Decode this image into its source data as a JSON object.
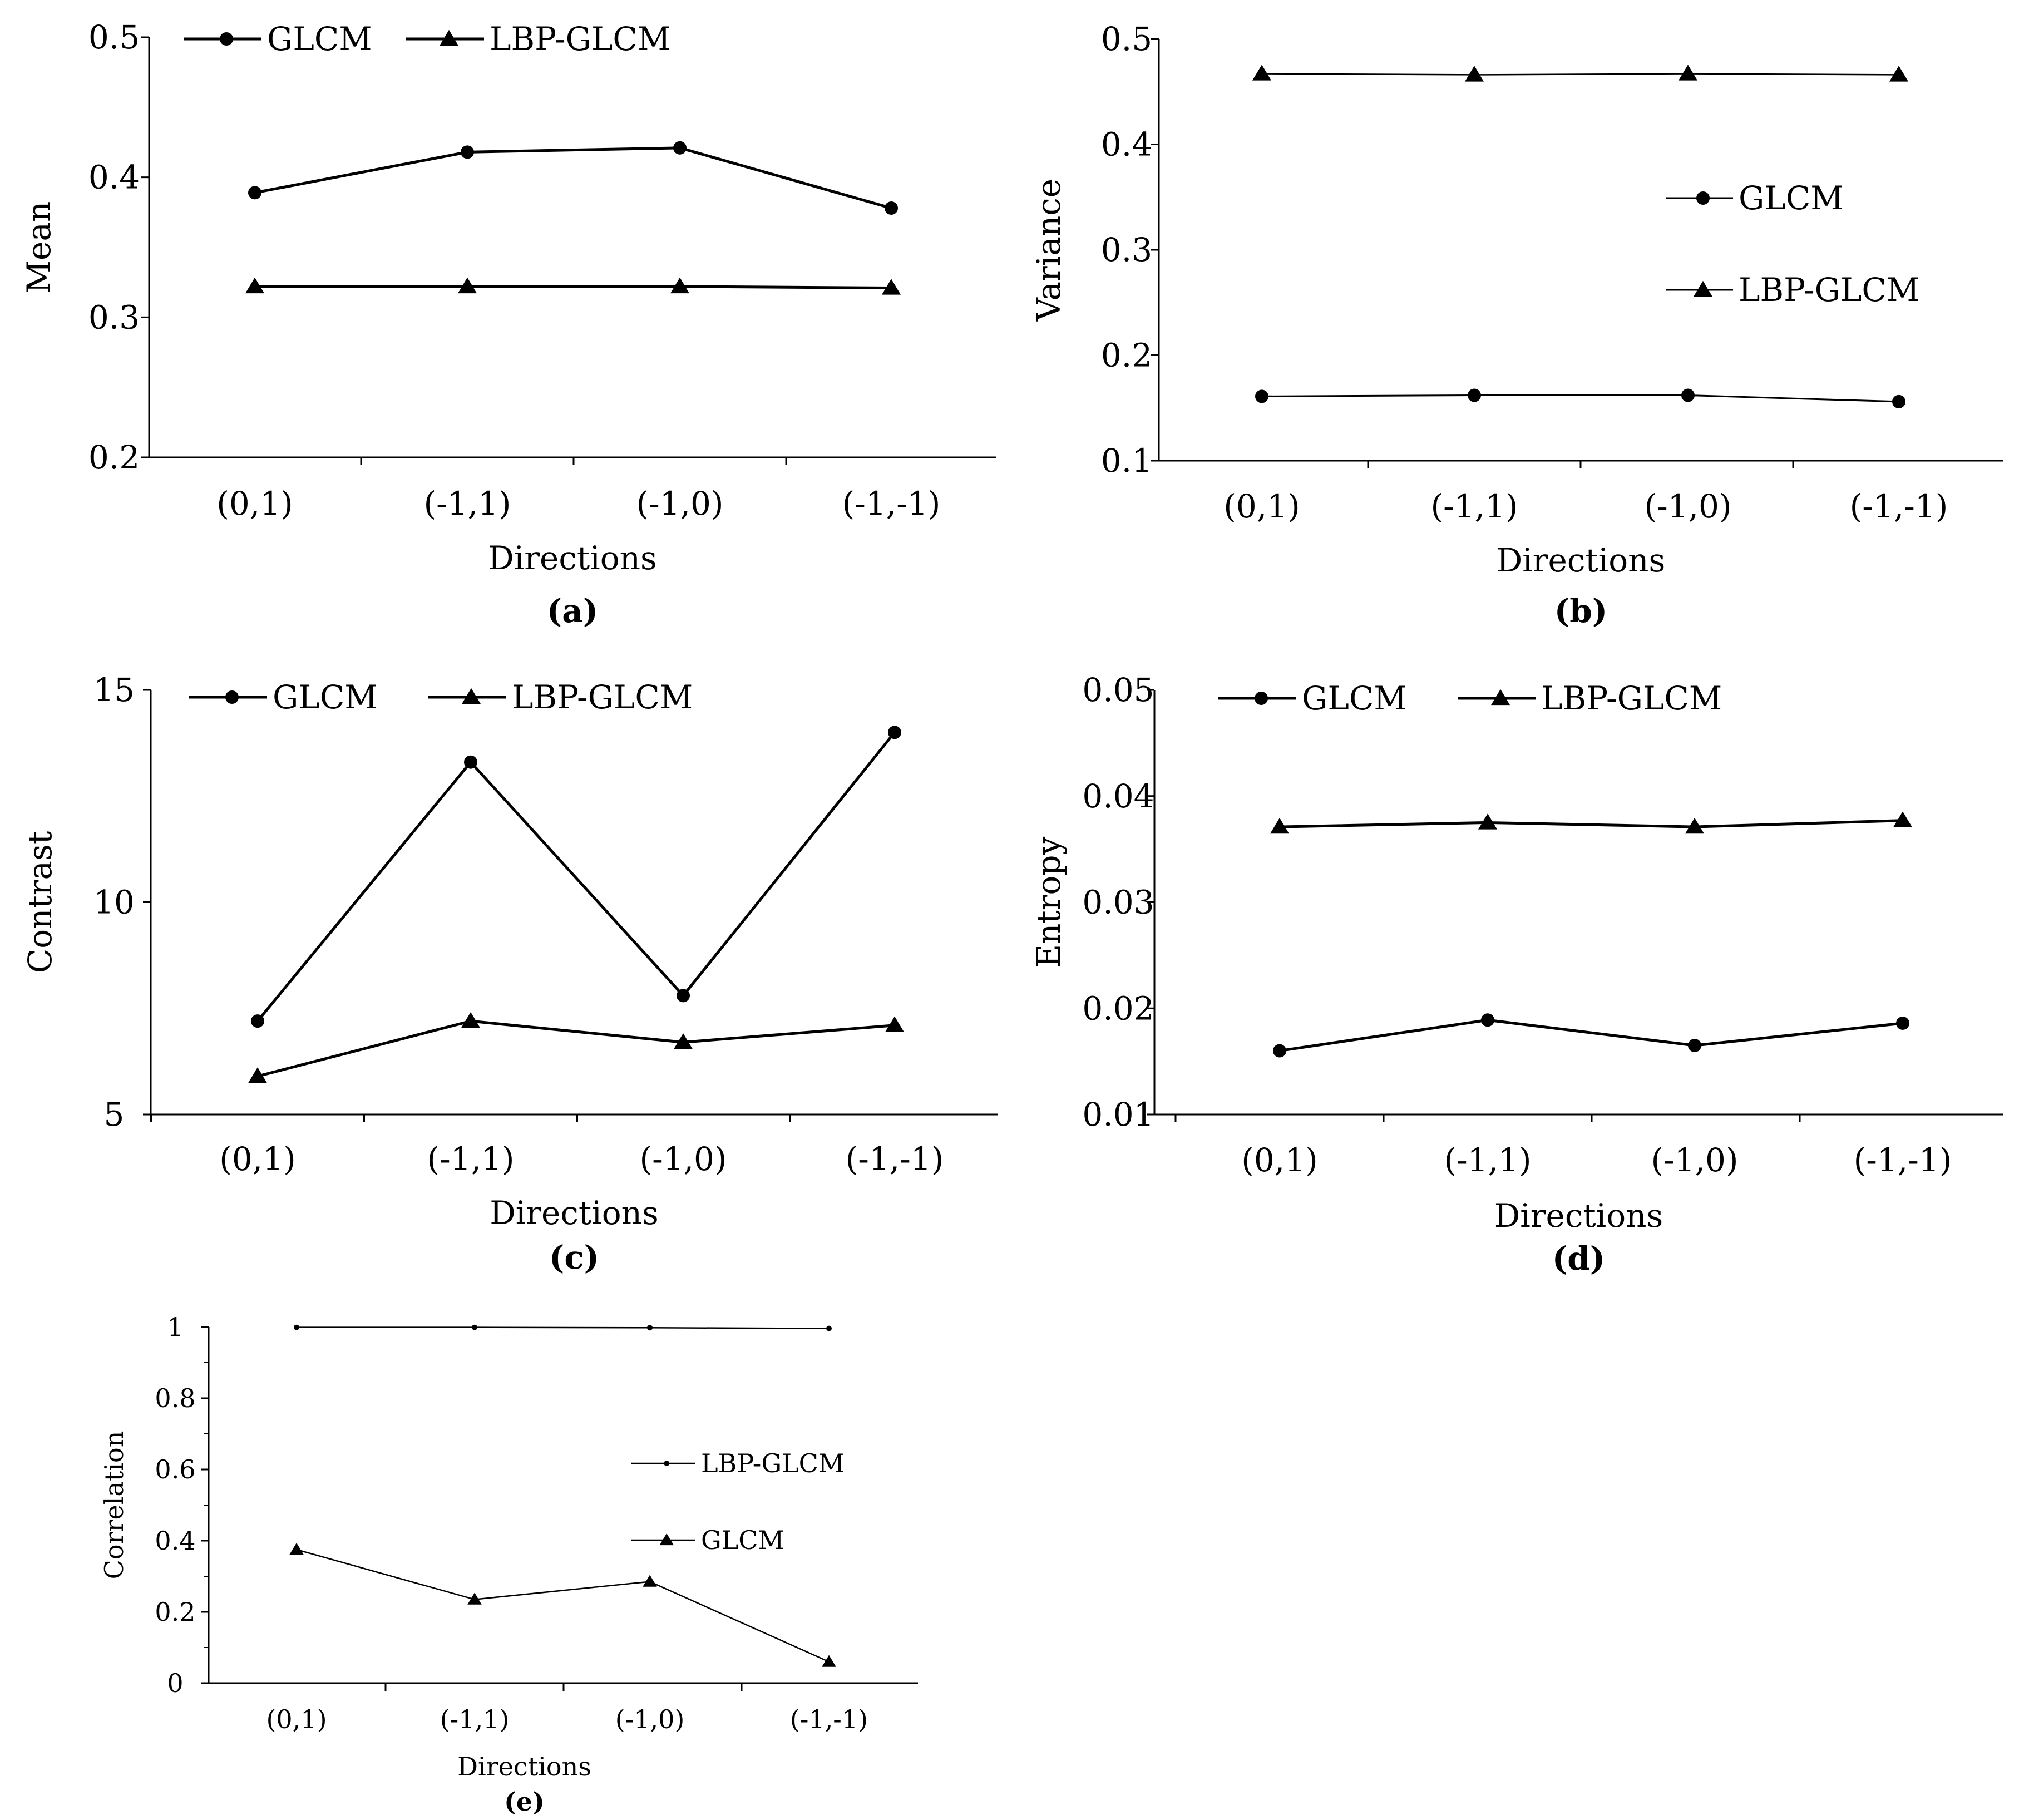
{
  "chart_data": [
    {
      "id": "a",
      "type": "line",
      "panel_label": "(a)",
      "title": "",
      "xlabel": "Directions",
      "ylabel": "Mean",
      "categories": [
        "(0,1)",
        "(-1,1)",
        "(-1,0)",
        "(-1,-1)"
      ],
      "ylim": [
        0.2,
        0.5
      ],
      "yticks": [
        "0.2",
        "0.3",
        "0.4",
        "0.5"
      ],
      "legend_position": "top-left",
      "series": [
        {
          "name": "GLCM",
          "marker": "circle",
          "values": [
            0.389,
            0.418,
            0.421,
            0.378
          ]
        },
        {
          "name": "LBP-GLCM",
          "marker": "triangle",
          "values": [
            0.322,
            0.322,
            0.322,
            0.321
          ]
        }
      ]
    },
    {
      "id": "b",
      "type": "line",
      "panel_label": "(b)",
      "title": "",
      "xlabel": "Directions",
      "ylabel": "Variance",
      "categories": [
        "(0,1)",
        "(-1,1)",
        "(-1,0)",
        "(-1,-1)"
      ],
      "ylim": [
        0.1,
        0.5
      ],
      "yticks": [
        "0.1",
        "0.2",
        "0.3",
        "0.4",
        "0.5"
      ],
      "legend_position": "right",
      "series": [
        {
          "name": "GLCM",
          "marker": "circle",
          "values": [
            0.161,
            0.162,
            0.162,
            0.156
          ]
        },
        {
          "name": "LBP-GLCM",
          "marker": "triangle",
          "values": [
            0.467,
            0.466,
            0.467,
            0.466
          ]
        }
      ]
    },
    {
      "id": "c",
      "type": "line",
      "panel_label": "(c)",
      "title": "",
      "xlabel": "Directions",
      "ylabel": "Contrast",
      "categories": [
        "(0,1)",
        "(-1,1)",
        "(-1,0)",
        "(-1,-1)"
      ],
      "ylim": [
        5,
        15
      ],
      "yticks": [
        "5",
        "10",
        "15"
      ],
      "legend_position": "top-left",
      "series": [
        {
          "name": "GLCM",
          "marker": "circle",
          "values": [
            7.2,
            13.3,
            7.8,
            14.0
          ]
        },
        {
          "name": "LBP-GLCM",
          "marker": "triangle",
          "values": [
            5.9,
            7.2,
            6.7,
            7.1
          ]
        }
      ]
    },
    {
      "id": "d",
      "type": "line",
      "panel_label": "(d)",
      "title": "",
      "xlabel": "Directions",
      "ylabel": "Entropy",
      "categories": [
        "(0,1)",
        "(-1,1)",
        "(-1,0)",
        "(-1,-1)"
      ],
      "ylim": [
        0.01,
        0.05
      ],
      "yticks": [
        "0.01",
        "0.02",
        "0.03",
        "0.04",
        "0.05"
      ],
      "legend_position": "top-left",
      "series": [
        {
          "name": "GLCM",
          "marker": "circle",
          "values": [
            0.016,
            0.0189,
            0.0165,
            0.0186
          ]
        },
        {
          "name": "LBP-GLCM",
          "marker": "triangle",
          "values": [
            0.0371,
            0.0375,
            0.0371,
            0.0377
          ]
        }
      ]
    },
    {
      "id": "e",
      "type": "line",
      "panel_label": "(e)",
      "title": "",
      "xlabel": "Directions",
      "ylabel": "Correlation",
      "categories": [
        "(0,1)",
        "(-1,1)",
        "(-1,0)",
        "(-1,-1)"
      ],
      "ylim": [
        0,
        1
      ],
      "yticks": [
        "0",
        "0.2",
        "0.4",
        "0.6",
        "0.8",
        "1"
      ],
      "legend_position": "right",
      "series": [
        {
          "name": "LBP-GLCM",
          "marker": "dot",
          "values": [
            0.999,
            0.999,
            0.998,
            0.996
          ]
        },
        {
          "name": "GLCM",
          "marker": "triangle",
          "values": [
            0.375,
            0.235,
            0.285,
            0.06
          ]
        }
      ]
    }
  ]
}
